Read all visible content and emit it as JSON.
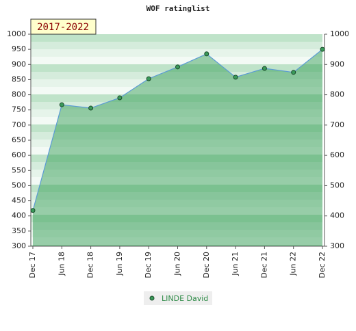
{
  "chart_data": {
    "type": "line",
    "title": "WOF ratinglist",
    "annotation": "2017-2022",
    "categories": [
      "Dec 17",
      "Jun 18",
      "Dec 18",
      "Jun 19",
      "Dec 19",
      "Jun 20",
      "Dec 20",
      "Jun 21",
      "Dec 21",
      "Jun 22",
      "Dec 22"
    ],
    "series": [
      {
        "name": "LINDE David",
        "color": "#3a9a5a",
        "line_color": "#5b9bd5",
        "values": [
          418,
          767,
          756,
          790,
          853,
          892,
          935,
          858,
          887,
          874,
          950
        ]
      }
    ],
    "ylim": [
      300,
      1000
    ],
    "yticks": [
      300,
      350,
      400,
      450,
      500,
      550,
      600,
      650,
      700,
      750,
      800,
      850,
      900,
      950,
      1000
    ],
    "y2lim": [
      300,
      1000
    ],
    "y2ticks": [
      300,
      400,
      500,
      600,
      700,
      800,
      900,
      1000
    ]
  }
}
